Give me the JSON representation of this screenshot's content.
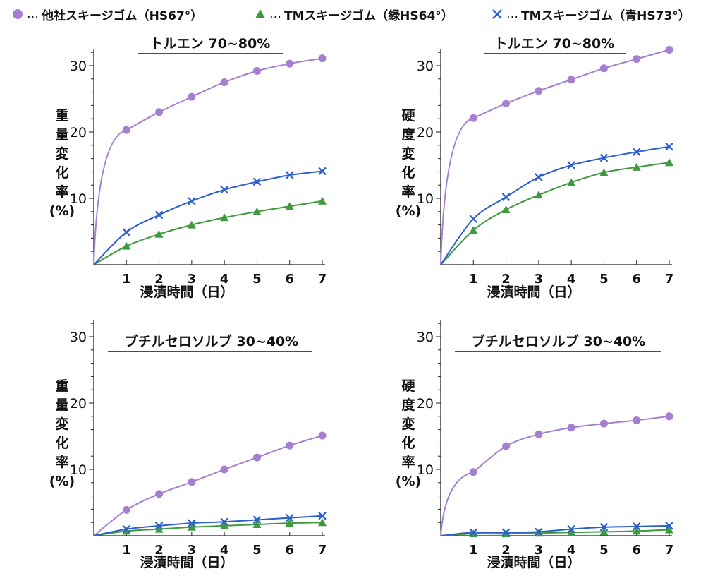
{
  "legend": {
    "dots": "…",
    "items": [
      {
        "label": "他社スキージゴム（HS67°）",
        "marker": "circle",
        "color": "#a77fd0"
      },
      {
        "label": "TMスキージゴム（緑HS64°）",
        "marker": "triangle",
        "color": "#3f9a3f"
      },
      {
        "label": "TMスキージゴム（青HS73°）",
        "marker": "cross",
        "color": "#2b5fd0"
      }
    ]
  },
  "chart_data": [
    {
      "type": "line",
      "title": "トルエン 70~80%",
      "xlabel": "浸漬時間（日）",
      "ylabel": "重量変化率(%)",
      "ylabel_chars": [
        "重",
        "量",
        "変",
        "化",
        "率",
        "(%)"
      ],
      "x": [
        1,
        2,
        3,
        4,
        5,
        6,
        7
      ],
      "xlim": [
        0,
        7
      ],
      "ylim": [
        0,
        30
      ],
      "yticks": [
        10,
        20,
        30
      ],
      "grid": false,
      "series": [
        {
          "name": "他社スキージゴム（HS67°）",
          "values": [
            20.3,
            23.0,
            25.3,
            27.5,
            29.2,
            30.3,
            31.1
          ]
        },
        {
          "name": "TMスキージゴム（緑HS64°）",
          "values": [
            2.8,
            4.6,
            6.0,
            7.1,
            8.0,
            8.8,
            9.6
          ]
        },
        {
          "name": "TMスキージゴム（青HS73°）",
          "values": [
            4.9,
            7.5,
            9.6,
            11.3,
            12.5,
            13.5,
            14.1
          ]
        }
      ]
    },
    {
      "type": "line",
      "title": "トルエン 70~80%",
      "xlabel": "浸漬時間（日）",
      "ylabel": "硬度変化率(%)",
      "ylabel_chars": [
        "硬",
        "度",
        "変",
        "化",
        "率",
        "(%)"
      ],
      "x": [
        1,
        2,
        3,
        4,
        5,
        6,
        7
      ],
      "xlim": [
        0,
        7
      ],
      "ylim": [
        0,
        30
      ],
      "yticks": [
        10,
        20,
        30
      ],
      "grid": false,
      "series": [
        {
          "name": "他社スキージゴム（HS67°）",
          "values": [
            22.1,
            24.3,
            26.2,
            27.9,
            29.6,
            31.0,
            32.4
          ]
        },
        {
          "name": "TMスキージゴム（緑HS64°）",
          "values": [
            5.2,
            8.3,
            10.5,
            12.4,
            13.9,
            14.7,
            15.4
          ]
        },
        {
          "name": "TMスキージゴム（青HS73°）",
          "values": [
            6.9,
            10.2,
            13.2,
            15.0,
            16.1,
            17.0,
            17.8
          ]
        }
      ]
    },
    {
      "type": "line",
      "title": "ブチルセロソルブ 30~40%",
      "xlabel": "浸漬時間（日）",
      "ylabel": "重量変化率(%)",
      "ylabel_chars": [
        "重",
        "量",
        "変",
        "化",
        "率",
        "(%)"
      ],
      "x": [
        1,
        2,
        3,
        4,
        5,
        6,
        7
      ],
      "xlim": [
        0,
        7
      ],
      "ylim": [
        0,
        30
      ],
      "yticks": [
        10,
        20,
        30
      ],
      "grid": false,
      "series": [
        {
          "name": "他社スキージゴム（HS67°）",
          "values": [
            3.9,
            6.3,
            8.1,
            10.0,
            11.8,
            13.6,
            15.1
          ]
        },
        {
          "name": "TMスキージゴム（緑HS64°）",
          "values": [
            0.7,
            1.0,
            1.3,
            1.5,
            1.7,
            1.9,
            2.0
          ]
        },
        {
          "name": "TMスキージゴム（青HS73°）",
          "values": [
            1.0,
            1.5,
            1.9,
            2.1,
            2.4,
            2.7,
            3.0
          ]
        }
      ]
    },
    {
      "type": "line",
      "title": "ブチルセロソルブ 30~40%",
      "xlabel": "浸漬時間（日）",
      "ylabel": "硬度変化率(%)",
      "ylabel_chars": [
        "硬",
        "度",
        "変",
        "化",
        "率",
        "(%)"
      ],
      "x": [
        1,
        2,
        3,
        4,
        5,
        6,
        7
      ],
      "xlim": [
        0,
        7
      ],
      "ylim": [
        0,
        30
      ],
      "yticks": [
        10,
        20,
        30
      ],
      "grid": false,
      "series": [
        {
          "name": "他社スキージゴム（HS67°）",
          "values": [
            9.6,
            13.5,
            15.3,
            16.3,
            16.9,
            17.4,
            18.0
          ]
        },
        {
          "name": "TMスキージゴム（緑HS64°）",
          "values": [
            0.3,
            0.3,
            0.4,
            0.5,
            0.6,
            0.7,
            0.9
          ]
        },
        {
          "name": "TMスキージゴム（青HS73°）",
          "values": [
            0.5,
            0.5,
            0.6,
            1.0,
            1.3,
            1.4,
            1.5
          ]
        }
      ]
    }
  ]
}
